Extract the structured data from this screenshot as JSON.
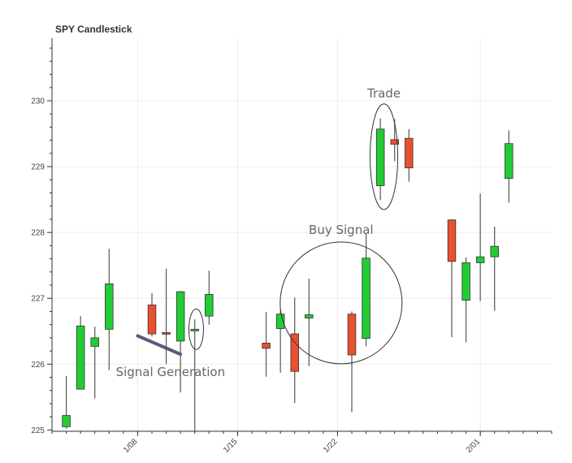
{
  "chart_data": {
    "type": "candlestick",
    "title": "SPY Candlestick",
    "xlabel": "",
    "ylabel": "",
    "ylim": [
      224.98,
      230.95
    ],
    "yticks": [
      225,
      226,
      227,
      228,
      229,
      230
    ],
    "xticks": [
      {
        "label": "1/08",
        "date": "2018-01-08"
      },
      {
        "label": "1/15",
        "date": "2018-01-15"
      },
      {
        "label": "1/22",
        "date": "2018-01-22"
      },
      {
        "label": "2/01",
        "date": "2018-02-01"
      }
    ],
    "xlim": [
      "2018-01-02",
      "2018-02-06"
    ],
    "grid": true,
    "colors": {
      "up": "#22cc33",
      "down": "#e8502f",
      "wick": "#555555",
      "trendline": "#5a5a78"
    },
    "candles": [
      {
        "date": "2018-01-03",
        "open": 225.05,
        "high": 225.82,
        "low": 225.02,
        "close": 225.22
      },
      {
        "date": "2018-01-04",
        "open": 225.62,
        "high": 226.73,
        "low": 225.62,
        "close": 226.58
      },
      {
        "date": "2018-01-05",
        "open": 226.27,
        "high": 226.57,
        "low": 225.48,
        "close": 226.4
      },
      {
        "date": "2018-01-06",
        "open": 226.53,
        "high": 227.75,
        "low": 225.91,
        "close": 227.22
      },
      {
        "date": "2018-01-09",
        "open": 226.9,
        "high": 227.08,
        "low": 226.42,
        "close": 226.46
      },
      {
        "date": "2018-01-10",
        "open": 226.48,
        "high": 227.45,
        "low": 226.0,
        "close": 226.46
      },
      {
        "date": "2018-01-11",
        "open": 226.35,
        "high": 227.11,
        "low": 225.57,
        "close": 227.1
      },
      {
        "date": "2018-01-12",
        "open": 226.51,
        "high": 226.68,
        "low": 224.98,
        "close": 226.53
      },
      {
        "date": "2018-01-13",
        "open": 226.73,
        "high": 227.42,
        "low": 226.6,
        "close": 227.06
      },
      {
        "date": "2018-01-17",
        "open": 226.32,
        "high": 226.79,
        "low": 225.81,
        "close": 226.24
      },
      {
        "date": "2018-01-18",
        "open": 226.54,
        "high": 226.82,
        "low": 225.87,
        "close": 226.76
      },
      {
        "date": "2018-01-19",
        "open": 226.46,
        "high": 227.01,
        "low": 225.41,
        "close": 225.89
      },
      {
        "date": "2018-01-20",
        "open": 226.7,
        "high": 227.3,
        "low": 225.97,
        "close": 226.75
      },
      {
        "date": "2018-01-23",
        "open": 226.76,
        "high": 226.8,
        "low": 225.27,
        "close": 226.14
      },
      {
        "date": "2018-01-24",
        "open": 226.39,
        "high": 227.98,
        "low": 226.27,
        "close": 227.61
      },
      {
        "date": "2018-01-25",
        "open": 228.71,
        "high": 229.73,
        "low": 228.49,
        "close": 229.57
      },
      {
        "date": "2018-01-26",
        "open": 229.41,
        "high": 229.72,
        "low": 229.08,
        "close": 229.34
      },
      {
        "date": "2018-01-27",
        "open": 229.43,
        "high": 229.57,
        "low": 228.77,
        "close": 228.98
      },
      {
        "date": "2018-01-30",
        "open": 228.19,
        "high": 228.2,
        "low": 226.41,
        "close": 227.56
      },
      {
        "date": "2018-01-31",
        "open": 226.97,
        "high": 227.62,
        "low": 226.33,
        "close": 227.54
      },
      {
        "date": "2018-02-01",
        "open": 227.54,
        "high": 228.59,
        "low": 226.96,
        "close": 227.63
      },
      {
        "date": "2018-02-02",
        "open": 227.63,
        "high": 228.09,
        "low": 226.81,
        "close": 227.79
      },
      {
        "date": "2018-02-03",
        "open": 228.82,
        "high": 229.55,
        "low": 228.45,
        "close": 229.35
      }
    ],
    "annotations": [
      {
        "id": "trade",
        "text": "Trade",
        "label_date": "2018-01-25",
        "label_value": 230.05,
        "center_date": "2018-01-25",
        "center_value": 229.15,
        "shape": "ellipse"
      },
      {
        "id": "buy-signal",
        "text": "Buy Signal",
        "label_date": "2018-01-23",
        "label_value": 227.98,
        "center_date": "2018-01-23",
        "center_value": 226.93,
        "shape": "circle"
      },
      {
        "id": "signal-generation",
        "text": "Signal Generation",
        "label_date": "2018-01-12",
        "label_value": 225.82,
        "center_date": "2018-01-12",
        "center_value": 226.53,
        "shape": "ellipse"
      }
    ],
    "trendline": {
      "start_date": "2018-01-08",
      "start_value": 226.43,
      "end_date": "2018-01-11",
      "end_value": 226.15
    }
  }
}
